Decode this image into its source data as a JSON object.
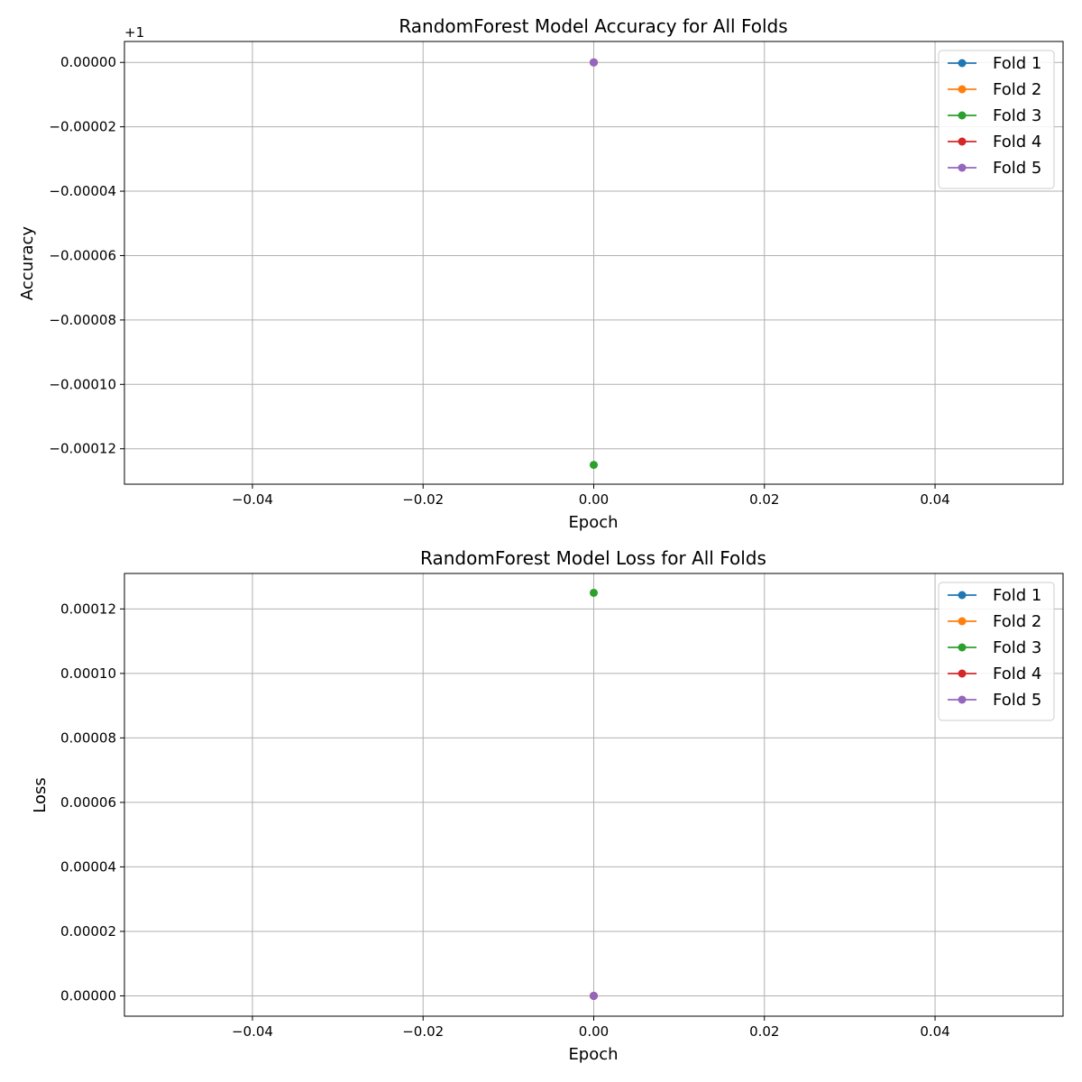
{
  "chart_data": [
    {
      "type": "line",
      "title": "RandomForest Model Accuracy for All Folds",
      "xlabel": "Epoch",
      "ylabel": "Accuracy",
      "offset_text": "+1",
      "xlim": [
        -0.055,
        0.055
      ],
      "ylim": [
        -0.000131,
        6.5e-06
      ],
      "x_ticks": [
        -0.04,
        -0.02,
        0.0,
        0.02,
        0.04
      ],
      "x_tick_labels": [
        "−0.04",
        "−0.02",
        "0.00",
        "0.02",
        "0.04"
      ],
      "y_ticks": [
        0,
        -2e-05,
        -4e-05,
        -6e-05,
        -8e-05,
        -0.0001,
        -0.00012
      ],
      "y_tick_labels": [
        "0.00000",
        "−0.00002",
        "−0.00004",
        "−0.00006",
        "−0.00008",
        "−0.00010",
        "−0.00012"
      ],
      "grid": true,
      "legend_position": "top-right",
      "series": [
        {
          "name": "Fold 1",
          "color": "#1f77b4",
          "x": [
            0
          ],
          "y": [
            0
          ]
        },
        {
          "name": "Fold 2",
          "color": "#ff7f0e",
          "x": [
            0
          ],
          "y": [
            0
          ]
        },
        {
          "name": "Fold 3",
          "color": "#2ca02c",
          "x": [
            0
          ],
          "y": [
            -0.000125
          ]
        },
        {
          "name": "Fold 4",
          "color": "#d62728",
          "x": [
            0
          ],
          "y": [
            0
          ]
        },
        {
          "name": "Fold 5",
          "color": "#9467bd",
          "x": [
            0
          ],
          "y": [
            0
          ]
        }
      ]
    },
    {
      "type": "line",
      "title": "RandomForest Model Loss for All Folds",
      "xlabel": "Epoch",
      "ylabel": "Loss",
      "offset_text": "",
      "xlim": [
        -0.055,
        0.055
      ],
      "ylim": [
        -6.3e-06,
        0.000131
      ],
      "x_ticks": [
        -0.04,
        -0.02,
        0.0,
        0.02,
        0.04
      ],
      "x_tick_labels": [
        "−0.04",
        "−0.02",
        "0.00",
        "0.02",
        "0.04"
      ],
      "y_ticks": [
        0,
        2e-05,
        4e-05,
        6e-05,
        8e-05,
        0.0001,
        0.00012
      ],
      "y_tick_labels": [
        "0.00000",
        "0.00002",
        "0.00004",
        "0.00006",
        "0.00008",
        "0.00010",
        "0.00012"
      ],
      "grid": true,
      "legend_position": "top-right",
      "series": [
        {
          "name": "Fold 1",
          "color": "#1f77b4",
          "x": [
            0
          ],
          "y": [
            0
          ]
        },
        {
          "name": "Fold 2",
          "color": "#ff7f0e",
          "x": [
            0
          ],
          "y": [
            0
          ]
        },
        {
          "name": "Fold 3",
          "color": "#2ca02c",
          "x": [
            0
          ],
          "y": [
            0.000125
          ]
        },
        {
          "name": "Fold 4",
          "color": "#d62728",
          "x": [
            0
          ],
          "y": [
            0
          ]
        },
        {
          "name": "Fold 5",
          "color": "#9467bd",
          "x": [
            0
          ],
          "y": [
            0
          ]
        }
      ]
    }
  ]
}
